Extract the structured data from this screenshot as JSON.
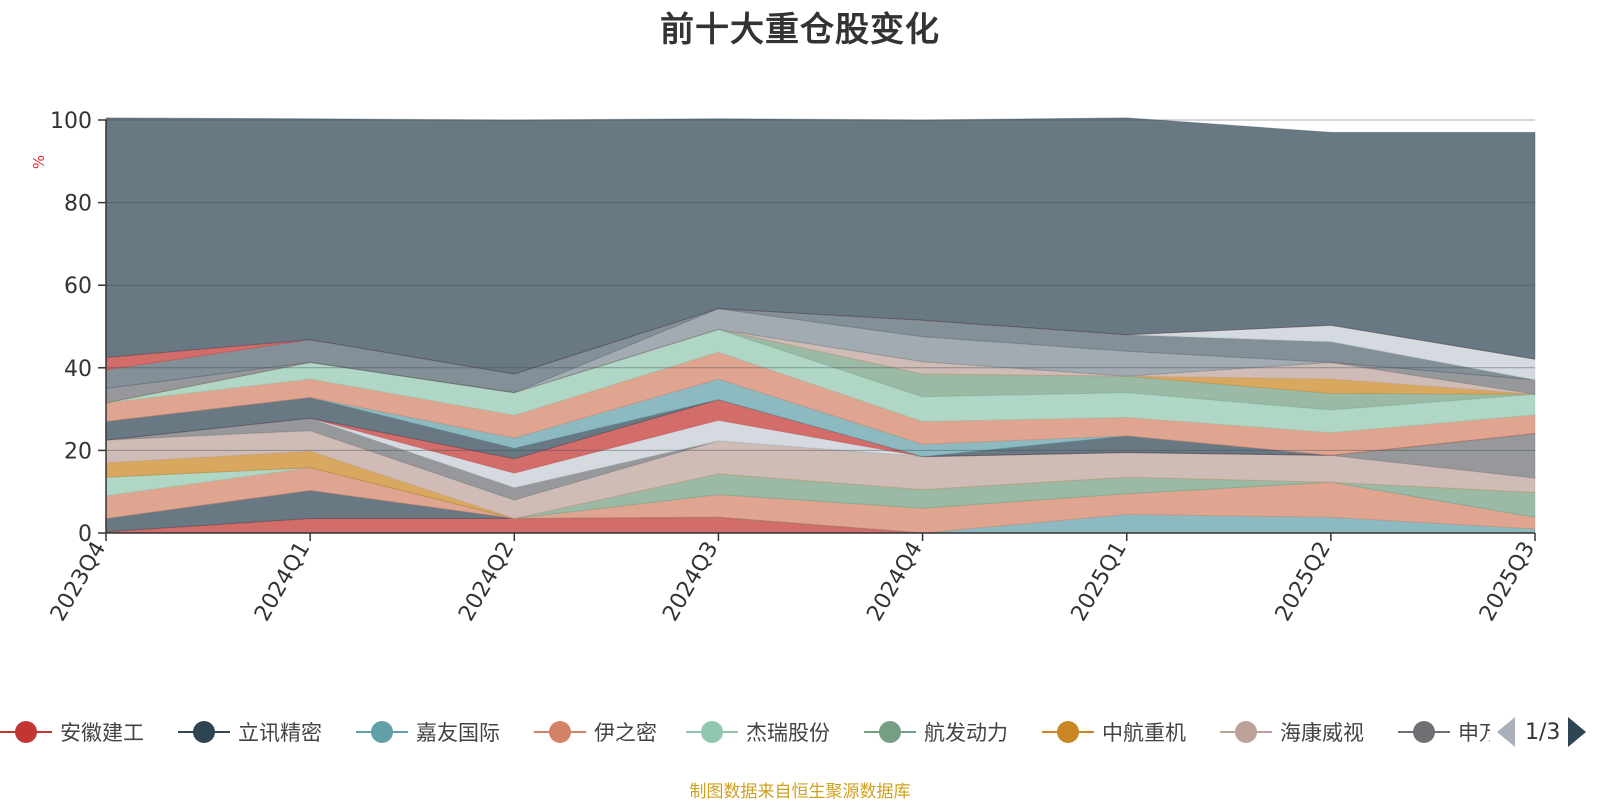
{
  "chart_data": {
    "type": "area",
    "title": "前十大重仓股变化",
    "ylabel": "%",
    "ylim": [
      0,
      100
    ],
    "yticks": [
      0,
      20,
      40,
      60,
      80,
      100
    ],
    "grid": true,
    "stacked": true,
    "categories": [
      "2023Q4",
      "2024Q1",
      "2024Q2",
      "2024Q3",
      "2024Q4",
      "2025Q1",
      "2025Q2",
      "2025Q3"
    ],
    "series": [
      {
        "color": "#c23531",
        "values": [
          0.3,
          3.5,
          3.5,
          3.8,
          0,
          0,
          0,
          0
        ]
      },
      {
        "color": "#2f4554",
        "values": [
          3.2,
          6.8,
          0,
          0,
          0,
          0,
          0,
          0
        ]
      },
      {
        "color": "#61a0a8",
        "values": [
          0,
          0,
          0,
          0,
          0,
          4.5,
          3.8,
          1.0
        ]
      },
      {
        "color": "#d48265",
        "values": [
          5.5,
          5.5,
          0,
          5.5,
          6.0,
          5.0,
          8.5,
          2.8
        ]
      },
      {
        "color": "#91c7ae",
        "values": [
          4.5,
          0,
          0,
          0,
          0,
          0,
          0,
          0
        ]
      },
      {
        "color": "#749f83",
        "values": [
          0,
          0,
          0,
          5.0,
          4.5,
          4.0,
          0,
          6.0
        ]
      },
      {
        "color": "#ca8622",
        "values": [
          3.5,
          4.0,
          0,
          0,
          0,
          0,
          0,
          0
        ]
      },
      {
        "color": "#bda29a",
        "values": [
          5.5,
          5.0,
          4.5,
          8.0,
          8.0,
          6.0,
          6.5,
          3.5
        ]
      },
      {
        "color": "#6e7074",
        "values": [
          0,
          3.0,
          3.0,
          0,
          0,
          0,
          0,
          10.8
        ]
      },
      {
        "color": "#c4ccd3",
        "values": [
          0,
          0,
          3.5,
          5.0,
          0,
          0,
          0,
          0
        ]
      },
      {
        "color": "#c23531",
        "values": [
          0,
          0,
          3.5,
          5.0,
          0,
          0,
          0,
          0
        ]
      },
      {
        "color": "#2f4554",
        "values": [
          4.5,
          5.0,
          2.5,
          0,
          0,
          4.0,
          0,
          0
        ]
      },
      {
        "color": "#61a0a8",
        "values": [
          0,
          0,
          2.5,
          5.0,
          3.0,
          0,
          0,
          0
        ]
      },
      {
        "color": "#d48265",
        "values": [
          4.5,
          4.5,
          5.5,
          6.5,
          5.5,
          4.5,
          5.5,
          4.5
        ]
      },
      {
        "color": "#91c7ae",
        "values": [
          0,
          4.0,
          5.5,
          5.5,
          6.0,
          6.0,
          5.5,
          5.0
        ]
      },
      {
        "color": "#749f83",
        "values": [
          0,
          0,
          0,
          0,
          5.5,
          4.0,
          4.0,
          0
        ]
      },
      {
        "color": "#ca8622",
        "values": [
          0,
          0,
          0,
          0,
          0,
          0,
          3.5,
          0
        ]
      },
      {
        "color": "#bda29a",
        "values": [
          0,
          0,
          0,
          0,
          3.0,
          0,
          4.0,
          0
        ]
      },
      {
        "color": "#6e7074",
        "values": [
          3.5,
          0,
          0,
          0,
          0,
          0,
          0,
          3.5
        ]
      },
      {
        "color": "#7f8a94",
        "values": [
          0,
          0,
          0,
          5.0,
          6.0,
          6.0,
          0,
          0
        ]
      },
      {
        "color": "#546570",
        "values": [
          4.5,
          5.5,
          4.5,
          0,
          4.0,
          4.0,
          5.0,
          0
        ]
      },
      {
        "color": "#c4ccd3",
        "values": [
          0,
          0,
          0,
          0,
          0,
          0,
          4.0,
          5.0
        ]
      },
      {
        "color": "#c23531",
        "values": [
          3.0,
          0,
          0,
          0,
          0,
          0,
          0,
          0
        ]
      },
      {
        "color": "#2f4554",
        "values": [
          58.0,
          53.5,
          61.5,
          46.0,
          48.5,
          52.5,
          46.7,
          54.9
        ]
      }
    ]
  },
  "legend": {
    "items": [
      {
        "label": "安徽建工",
        "color": "#c23531"
      },
      {
        "label": "立讯精密",
        "color": "#2f4554"
      },
      {
        "label": "嘉友国际",
        "color": "#61a0a8"
      },
      {
        "label": "伊之密",
        "color": "#d48265"
      },
      {
        "label": "杰瑞股份",
        "color": "#91c7ae"
      },
      {
        "label": "航发动力",
        "color": "#749f83"
      },
      {
        "label": "中航重机",
        "color": "#ca8622"
      },
      {
        "label": "海康威视",
        "color": "#bda29a"
      },
      {
        "label": "申万",
        "color": "#6e7074"
      }
    ],
    "page": "1/3"
  },
  "source": "制图数据来自恒生聚源数据库"
}
